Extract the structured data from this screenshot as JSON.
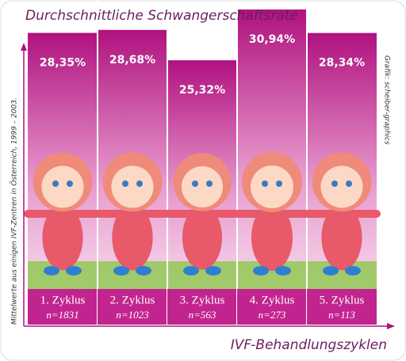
{
  "chart_data": {
    "type": "bar",
    "title": "Durchschnittliche Schwangerschaftsrate",
    "y_label": "Mittelwerte aus einigen IVF-Zentren in Österreich, 1999 – 2003.",
    "x_label": "IVF-Behandlungszyklen",
    "credit": "Grafik: scheiber-graphics",
    "categories": [
      "1. Zyklus",
      "2. Zyklus",
      "3. Zyklus",
      "4. Zyklus",
      "5. Zyklus"
    ],
    "n_labels": [
      "n=1831",
      "n=1023",
      "n=563",
      "n=273",
      "n=113"
    ],
    "values": [
      28.35,
      28.68,
      25.32,
      30.94,
      28.34
    ],
    "value_labels": [
      "28,35%",
      "28,68%",
      "25,32%",
      "30,94%",
      "28,34%"
    ],
    "color": "#c2248f"
  }
}
